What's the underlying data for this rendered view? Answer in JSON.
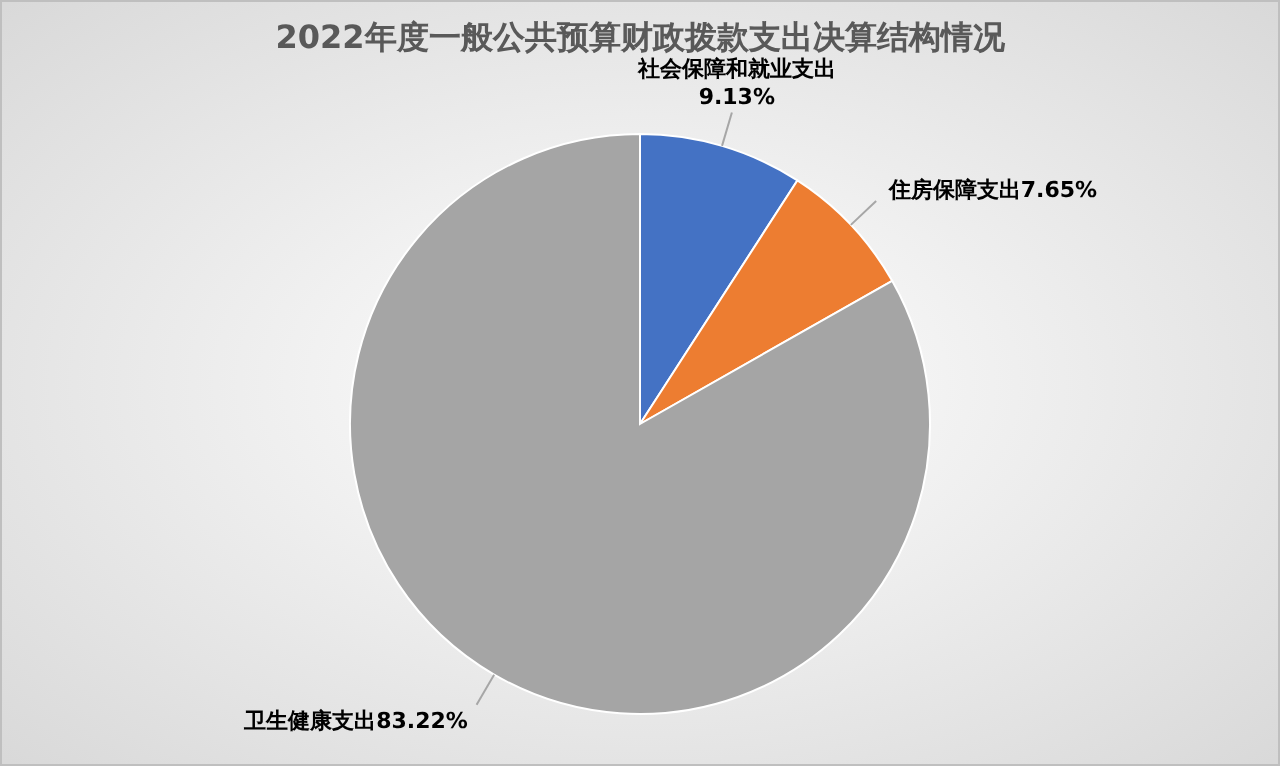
{
  "chart_data": {
    "type": "pie",
    "title": "2022年度一般公共预算财政拨款支出决算结构情况",
    "categories": [
      "社会保障和就业支出",
      "住房保障支出",
      "卫生健康支出"
    ],
    "values": [
      9.13,
      7.65,
      83.22
    ],
    "colors": [
      "#4472c4",
      "#ed7d31",
      "#a5a5a5"
    ],
    "value_labels": [
      "9.13%",
      "7.65%",
      "83.22%"
    ]
  }
}
